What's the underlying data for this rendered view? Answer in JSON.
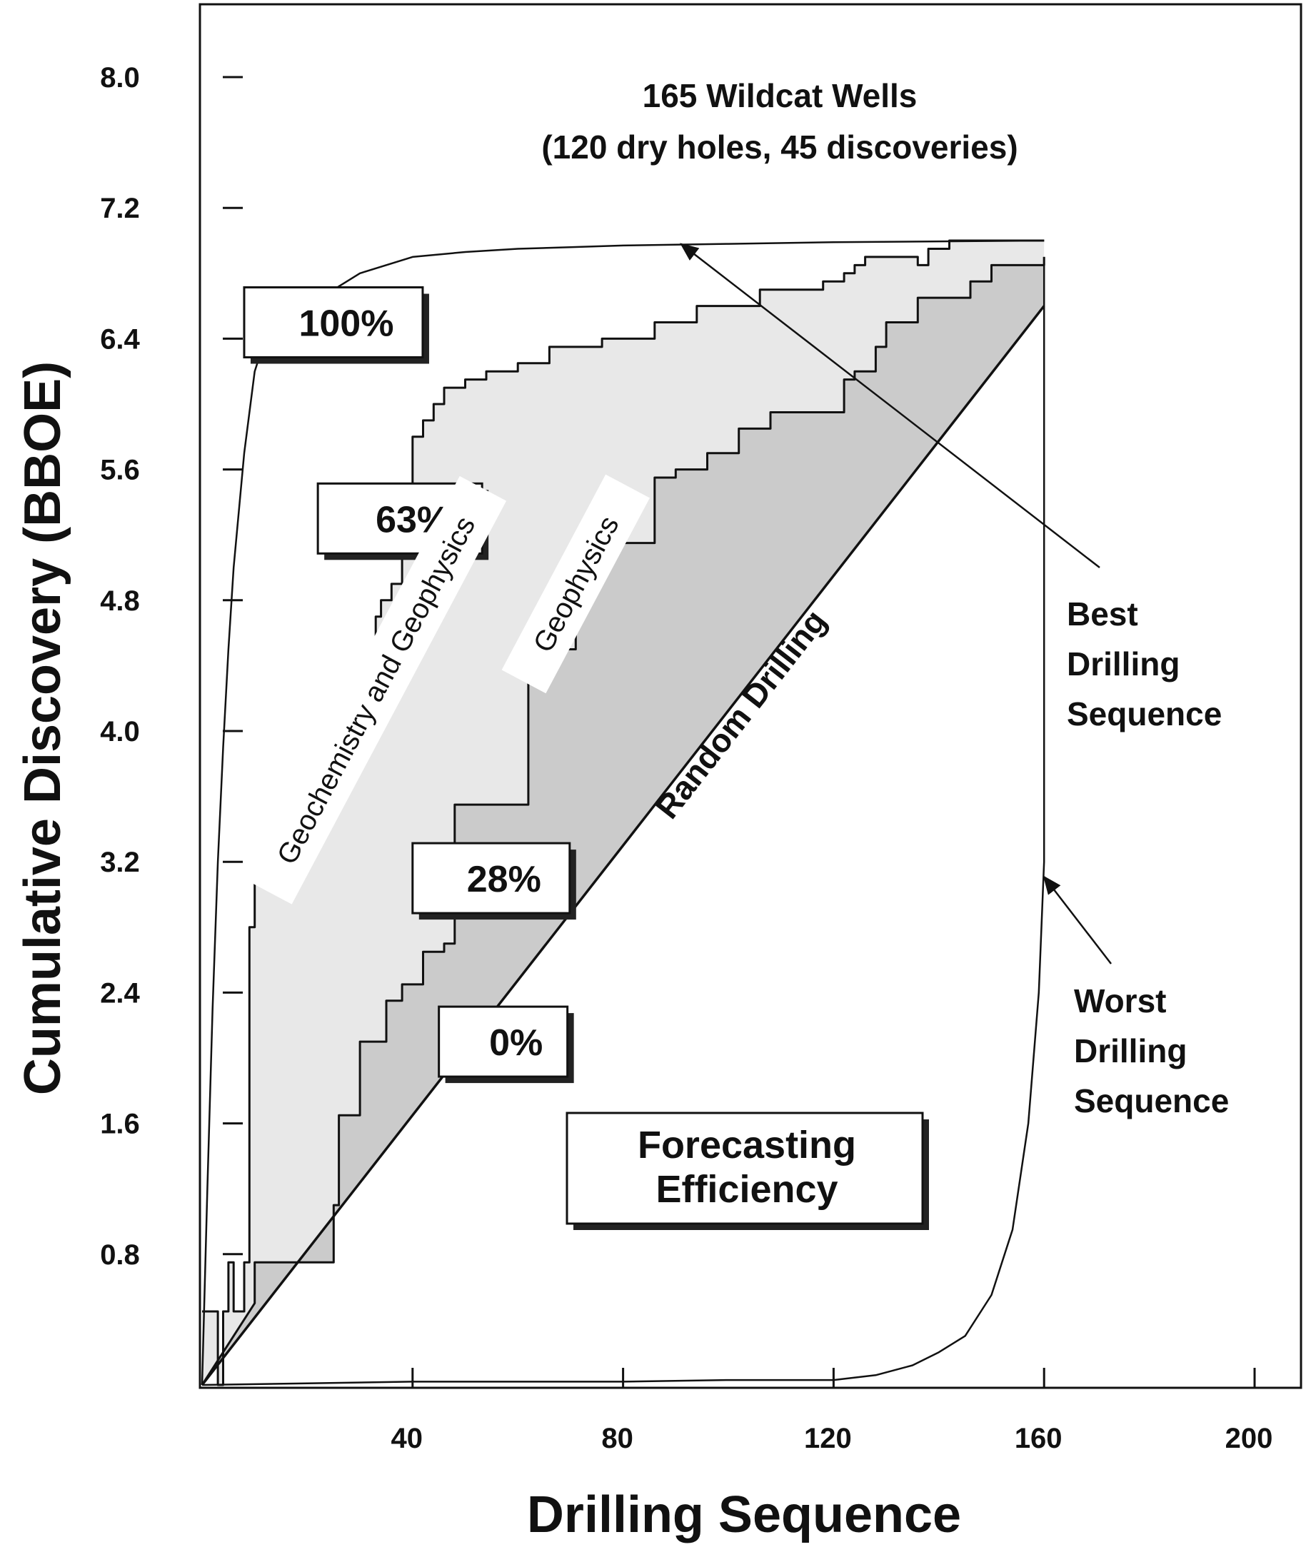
{
  "chart_data": {
    "type": "area",
    "title": "165 Wildcat Wells",
    "subtitle": "(120 dry holes, 45 discoveries)",
    "xlabel": "Drilling Sequence",
    "ylabel": "Cumulative Discovery (BBOE)",
    "xlim": [
      0,
      210
    ],
    "ylim": [
      0,
      8.5
    ],
    "x_ticks": [
      40,
      80,
      120,
      160,
      200
    ],
    "x_tick_labels": [
      "40",
      "80",
      "120",
      "160",
      "200"
    ],
    "y_ticks": [
      0.8,
      1.6,
      2.4,
      3.2,
      4.0,
      4.8,
      5.6,
      6.4,
      7.2,
      8.0
    ],
    "y_tick_labels": [
      "0.8",
      "1.6",
      "2.4",
      "3.2",
      "4.0",
      "4.8",
      "5.6",
      "6.4",
      "7.2",
      "8.0"
    ],
    "series": [
      {
        "name": "Random Drilling",
        "x": [
          0,
          160
        ],
        "y": [
          0,
          6.6
        ]
      },
      {
        "name": "Geophysics",
        "x": [
          0,
          10,
          10,
          12,
          25,
          25,
          26,
          26,
          30,
          30,
          35,
          35,
          38,
          38,
          42,
          42,
          46,
          46,
          48,
          48,
          62,
          62,
          66,
          66,
          71,
          71,
          74,
          74,
          86,
          86,
          90,
          90,
          96,
          96,
          102,
          102,
          108,
          108,
          122,
          122,
          124,
          124,
          128,
          128,
          130,
          130,
          136,
          136,
          146,
          146,
          150,
          150,
          160,
          160
        ],
        "y": [
          0,
          0.5,
          0.75,
          0.75,
          0.75,
          1.1,
          1.1,
          1.65,
          1.65,
          2.1,
          2.1,
          2.35,
          2.35,
          2.45,
          2.45,
          2.65,
          2.65,
          2.7,
          2.7,
          3.55,
          3.55,
          4.45,
          4.45,
          4.5,
          4.5,
          5.05,
          5.05,
          5.15,
          5.15,
          5.55,
          5.55,
          5.6,
          5.6,
          5.7,
          5.7,
          5.85,
          5.85,
          5.95,
          5.95,
          6.15,
          6.15,
          6.2,
          6.2,
          6.35,
          6.35,
          6.5,
          6.5,
          6.65,
          6.65,
          6.75,
          6.75,
          6.85,
          6.85,
          6.9
        ]
      },
      {
        "name": "Geochemistry and Geophysics",
        "x": [
          0,
          3,
          3,
          4,
          4,
          5,
          5,
          6,
          6,
          8,
          8,
          9,
          9,
          10,
          10,
          12,
          12,
          14,
          14,
          18,
          18,
          22,
          22,
          25,
          25,
          26,
          26,
          28,
          28,
          29,
          29,
          30,
          30,
          31,
          31,
          32,
          32,
          33,
          33,
          34,
          34,
          36,
          36,
          38,
          38,
          40,
          40,
          42,
          42,
          44,
          44,
          46,
          46,
          50,
          50,
          54,
          54,
          60,
          60,
          66,
          66,
          76,
          76,
          86,
          86,
          94,
          94,
          106,
          106,
          118,
          118,
          122,
          122,
          124,
          124,
          126,
          126,
          136,
          136,
          138,
          138,
          142,
          142,
          150,
          150,
          160
        ],
        "y": [
          0.45,
          0.45,
          0,
          0,
          0.45,
          0.45,
          0.75,
          0.75,
          0.45,
          0.45,
          0.75,
          0.75,
          2.8,
          2.8,
          3.1,
          3.1,
          3.2,
          3.2,
          3.35,
          3.35,
          3.45,
          3.45,
          3.5,
          3.5,
          3.55,
          3.55,
          3.7,
          3.7,
          3.8,
          3.8,
          3.95,
          3.95,
          4.05,
          4.05,
          4.25,
          4.25,
          4.4,
          4.4,
          4.7,
          4.7,
          4.8,
          4.8,
          4.9,
          4.9,
          5.35,
          5.35,
          5.8,
          5.8,
          5.9,
          5.9,
          6.0,
          6.0,
          6.1,
          6.1,
          6.15,
          6.15,
          6.2,
          6.2,
          6.25,
          6.25,
          6.35,
          6.35,
          6.4,
          6.4,
          6.5,
          6.5,
          6.6,
          6.6,
          6.7,
          6.7,
          6.75,
          6.75,
          6.8,
          6.8,
          6.85,
          6.85,
          6.9,
          6.9,
          6.85,
          6.85,
          6.95,
          6.95,
          7.0,
          7.0,
          7.0,
          7.0
        ]
      },
      {
        "name": "Best Drilling Sequence",
        "x": [
          0,
          1,
          2,
          3,
          4,
          5,
          6,
          8,
          10,
          12,
          14,
          16,
          20,
          30,
          40,
          50,
          60,
          70,
          80,
          100,
          120,
          160
        ],
        "y": [
          0,
          1.2,
          2.3,
          3.2,
          3.9,
          4.5,
          5.0,
          5.7,
          6.2,
          6.4,
          6.5,
          6.55,
          6.6,
          6.8,
          6.9,
          6.93,
          6.95,
          6.96,
          6.97,
          6.98,
          6.99,
          7.0
        ]
      },
      {
        "name": "Worst Drilling Sequence",
        "x": [
          0,
          20,
          40,
          60,
          80,
          100,
          120,
          128,
          135,
          140,
          145,
          150,
          154,
          157,
          159,
          160,
          160,
          160
        ],
        "y": [
          0,
          0.01,
          0.02,
          0.02,
          0.02,
          0.03,
          0.03,
          0.06,
          0.12,
          0.2,
          0.3,
          0.55,
          0.95,
          1.6,
          2.4,
          3.2,
          4.5,
          6.9
        ]
      }
    ],
    "box_labels": [
      {
        "text": "100%",
        "x": 8,
        "y": 6.5
      },
      {
        "text": "63%",
        "x": 22,
        "y": 5.3
      },
      {
        "text": "28%",
        "x": 40,
        "y": 3.1
      },
      {
        "text": "0%",
        "x": 45,
        "y": 2.1
      }
    ],
    "band_labels": [
      {
        "text": "Geochemistry and Geophysics",
        "x": 33,
        "y": 4.25
      },
      {
        "text": "Geophysics",
        "x": 71,
        "y": 4.9
      }
    ],
    "random_label": "Random Drilling",
    "forecasting_label": [
      "Forecasting",
      "Efficiency"
    ],
    "best_label": [
      "Best",
      "Drilling",
      "Sequence"
    ],
    "worst_label": [
      "Worst",
      "Drilling",
      "Sequence"
    ],
    "colors": {
      "geophysics_fill": "#cbcbcb",
      "geochem_fill": "#e8e8e8",
      "line": "#111111",
      "frame": "#111111"
    }
  }
}
